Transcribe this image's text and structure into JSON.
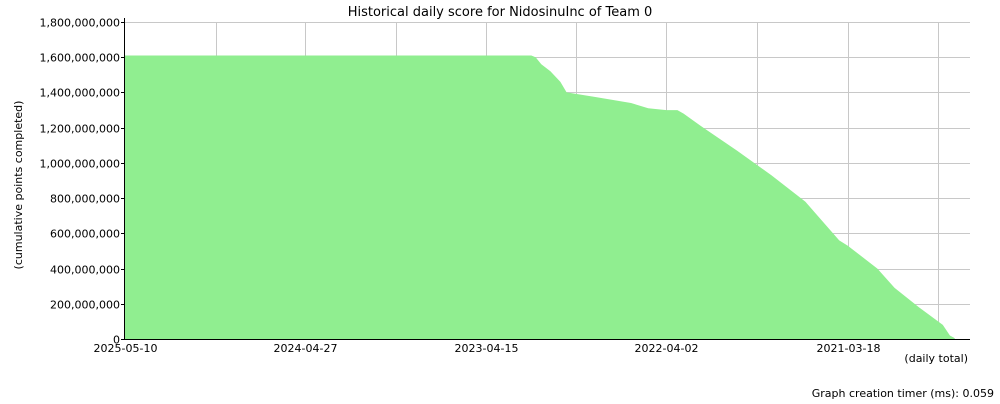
{
  "chart_data": {
    "type": "area",
    "title": "Historical daily score for NidosinuInc of Team 0",
    "xlabel": "(daily total)",
    "ylabel": "(cumulative points completed)",
    "footer": "Graph creation timer (ms): 0.059",
    "ylim": [
      0,
      1800000000
    ],
    "yticks": [
      0,
      200000000,
      400000000,
      600000000,
      800000000,
      1000000000,
      1200000000,
      1400000000,
      1600000000,
      1800000000
    ],
    "ytick_labels": [
      "0",
      "200,000,000",
      "400,000,000",
      "600,000,000",
      "800,000,000",
      "1,000,000,000",
      "1,200,000,000",
      "1,400,000,000",
      "1,600,000,000",
      "1,800,000,000"
    ],
    "x_axis_reversed": true,
    "xlim": [
      "2025-05-10",
      "2020-07-05"
    ],
    "xticks": [
      {
        "date": "2025-05-10",
        "label": "2025-05-10"
      },
      {
        "date": "2024-11-01",
        "label": ""
      },
      {
        "date": "2024-04-27",
        "label": "2024-04-27"
      },
      {
        "date": "2023-10-21",
        "label": ""
      },
      {
        "date": "2023-04-15",
        "label": "2023-04-15"
      },
      {
        "date": "2022-10-08",
        "label": ""
      },
      {
        "date": "2022-04-02",
        "label": "2022-04-02"
      },
      {
        "date": "2021-09-24",
        "label": ""
      },
      {
        "date": "2021-03-18",
        "label": "2021-03-18"
      },
      {
        "date": "2020-09-10",
        "label": ""
      }
    ],
    "grid": true,
    "colors": {
      "fill": "#90ee90",
      "grid": "#c8c8c8",
      "axis": "#000000",
      "plot_bg": "#ffffff"
    },
    "series": [
      {
        "points": [
          {
            "x": "2025-05-10",
            "y": 1610000000
          },
          {
            "x": "2024-01-01",
            "y": 1610000000
          },
          {
            "x": "2023-01-10",
            "y": 1610000000
          },
          {
            "x": "2023-01-01",
            "y": 1600000000
          },
          {
            "x": "2022-12-20",
            "y": 1560000000
          },
          {
            "x": "2022-12-01",
            "y": 1520000000
          },
          {
            "x": "2022-11-10",
            "y": 1460000000
          },
          {
            "x": "2022-10-28",
            "y": 1400000000
          },
          {
            "x": "2022-09-01",
            "y": 1375000000
          },
          {
            "x": "2022-06-15",
            "y": 1340000000
          },
          {
            "x": "2022-05-10",
            "y": 1310000000
          },
          {
            "x": "2022-04-02",
            "y": 1300000000
          },
          {
            "x": "2022-03-10",
            "y": 1300000000
          },
          {
            "x": "2022-02-25",
            "y": 1280000000
          },
          {
            "x": "2022-01-20",
            "y": 1210000000
          },
          {
            "x": "2021-11-05",
            "y": 1070000000
          },
          {
            "x": "2021-08-25",
            "y": 930000000
          },
          {
            "x": "2021-06-15",
            "y": 780000000
          },
          {
            "x": "2021-04-05",
            "y": 560000000
          },
          {
            "x": "2021-03-18",
            "y": 530000000
          },
          {
            "x": "2021-01-15",
            "y": 400000000
          },
          {
            "x": "2020-12-10",
            "y": 290000000
          },
          {
            "x": "2020-10-20",
            "y": 180000000
          },
          {
            "x": "2020-08-31",
            "y": 80000000
          },
          {
            "x": "2020-08-16",
            "y": 20000000
          },
          {
            "x": "2020-08-06",
            "y": 5000000
          }
        ]
      }
    ]
  }
}
